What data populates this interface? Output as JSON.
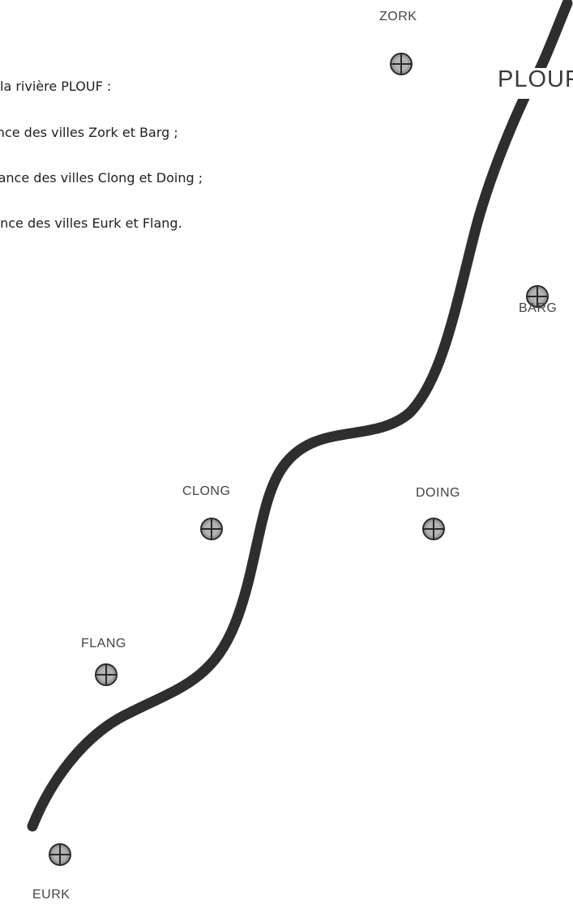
{
  "instructions": [
    "la rivière PLOUF :",
    "ance des villes Zork et Barg ;",
    "stance des villes Clong et Doing ;",
    "tance des villes Eurk et Flang."
  ],
  "map": {
    "river_name": "PLOUF",
    "river_color": "#2e2e2e",
    "city_marker_color": "#9a9a9a",
    "city_marker_icon": "crosshair-circle-icon",
    "cities": [
      {
        "id": "zork",
        "name": "ZORK"
      },
      {
        "id": "barg",
        "name": "BARG"
      },
      {
        "id": "clong",
        "name": "CLONG"
      },
      {
        "id": "doing",
        "name": "DOING"
      },
      {
        "id": "flang",
        "name": "FLANG"
      },
      {
        "id": "eurk",
        "name": "EURK"
      }
    ]
  }
}
